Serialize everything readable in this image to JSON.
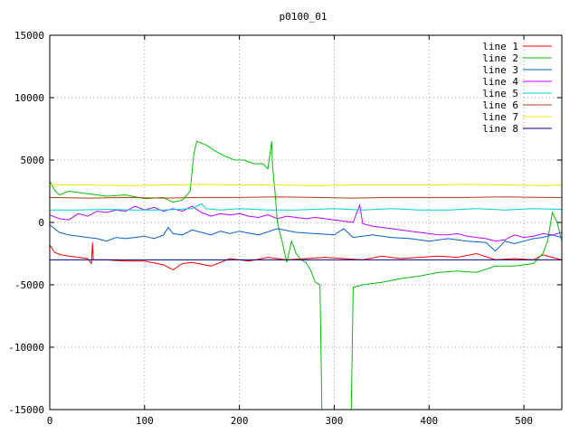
{
  "chart_data": {
    "type": "line",
    "title": "p0100_01",
    "xlabel": "",
    "ylabel": "",
    "xlim": [
      0,
      540
    ],
    "ylim": [
      -15000,
      15000
    ],
    "x_ticks": [
      0,
      100,
      200,
      300,
      400,
      500
    ],
    "y_ticks": [
      -15000,
      -10000,
      -5000,
      0,
      5000,
      10000,
      15000
    ],
    "grid": true,
    "legend_position": "top-right",
    "series": [
      {
        "name": "line 1",
        "color": "#ff0000",
        "points": [
          [
            0,
            -1800
          ],
          [
            5,
            -2400
          ],
          [
            12,
            -2600
          ],
          [
            20,
            -2700
          ],
          [
            30,
            -2800
          ],
          [
            40,
            -2900
          ],
          [
            44,
            -3300
          ],
          [
            45,
            -1600
          ],
          [
            46,
            -3000
          ],
          [
            60,
            -3000
          ],
          [
            80,
            -3100
          ],
          [
            100,
            -3100
          ],
          [
            120,
            -3400
          ],
          [
            130,
            -3800
          ],
          [
            140,
            -3300
          ],
          [
            150,
            -3200
          ],
          [
            170,
            -3500
          ],
          [
            190,
            -2900
          ],
          [
            210,
            -3100
          ],
          [
            230,
            -2800
          ],
          [
            250,
            -3000
          ],
          [
            270,
            -2900
          ],
          [
            290,
            -2800
          ],
          [
            310,
            -2900
          ],
          [
            330,
            -3000
          ],
          [
            350,
            -2700
          ],
          [
            370,
            -2900
          ],
          [
            390,
            -2800
          ],
          [
            410,
            -2700
          ],
          [
            430,
            -2800
          ],
          [
            450,
            -2500
          ],
          [
            470,
            -3000
          ],
          [
            490,
            -2900
          ],
          [
            510,
            -3000
          ],
          [
            520,
            -2600
          ],
          [
            530,
            -2800
          ],
          [
            540,
            -3000
          ]
        ]
      },
      {
        "name": "line 2",
        "color": "#00c000",
        "points": [
          [
            0,
            3300
          ],
          [
            5,
            2600
          ],
          [
            10,
            2200
          ],
          [
            20,
            2500
          ],
          [
            40,
            2300
          ],
          [
            60,
            2100
          ],
          [
            80,
            2200
          ],
          [
            100,
            1900
          ],
          [
            120,
            2000
          ],
          [
            130,
            1600
          ],
          [
            140,
            1800
          ],
          [
            148,
            2500
          ],
          [
            152,
            5500
          ],
          [
            155,
            6500
          ],
          [
            165,
            6200
          ],
          [
            175,
            5700
          ],
          [
            185,
            5300
          ],
          [
            195,
            5000
          ],
          [
            205,
            5000
          ],
          [
            215,
            4700
          ],
          [
            225,
            4700
          ],
          [
            230,
            4300
          ],
          [
            234,
            6500
          ],
          [
            235,
            4500
          ],
          [
            238,
            2000
          ],
          [
            240,
            0
          ],
          [
            245,
            -1500
          ],
          [
            250,
            -3200
          ],
          [
            255,
            -1500
          ],
          [
            260,
            -2500
          ],
          [
            265,
            -3000
          ],
          [
            270,
            -3200
          ],
          [
            275,
            -3800
          ],
          [
            280,
            -4800
          ],
          [
            285,
            -5000
          ],
          [
            287,
            -15000
          ],
          [
            318,
            -15000
          ],
          [
            320,
            -5200
          ],
          [
            330,
            -5000
          ],
          [
            350,
            -4800
          ],
          [
            370,
            -4500
          ],
          [
            390,
            -4300
          ],
          [
            410,
            -4000
          ],
          [
            430,
            -3900
          ],
          [
            450,
            -4000
          ],
          [
            470,
            -3500
          ],
          [
            490,
            -3500
          ],
          [
            510,
            -3300
          ],
          [
            520,
            -2500
          ],
          [
            525,
            -1500
          ],
          [
            530,
            800
          ],
          [
            535,
            0
          ],
          [
            540,
            -1500
          ]
        ]
      },
      {
        "name": "line 3",
        "color": "#0060d0",
        "points": [
          [
            0,
            -200
          ],
          [
            10,
            -800
          ],
          [
            20,
            -1000
          ],
          [
            30,
            -1100
          ],
          [
            40,
            -1200
          ],
          [
            50,
            -1300
          ],
          [
            60,
            -1500
          ],
          [
            70,
            -1200
          ],
          [
            80,
            -1300
          ],
          [
            90,
            -1200
          ],
          [
            100,
            -1100
          ],
          [
            110,
            -1300
          ],
          [
            120,
            -1000
          ],
          [
            125,
            -400
          ],
          [
            130,
            -900
          ],
          [
            140,
            -1000
          ],
          [
            150,
            -600
          ],
          [
            160,
            -800
          ],
          [
            170,
            -1000
          ],
          [
            180,
            -700
          ],
          [
            190,
            -900
          ],
          [
            200,
            -700
          ],
          [
            220,
            -1000
          ],
          [
            240,
            -500
          ],
          [
            260,
            -800
          ],
          [
            280,
            -900
          ],
          [
            300,
            -1000
          ],
          [
            310,
            -500
          ],
          [
            320,
            -1200
          ],
          [
            340,
            -1000
          ],
          [
            360,
            -1200
          ],
          [
            380,
            -1300
          ],
          [
            400,
            -1500
          ],
          [
            420,
            -1300
          ],
          [
            440,
            -1500
          ],
          [
            460,
            -1600
          ],
          [
            470,
            -2300
          ],
          [
            480,
            -1500
          ],
          [
            490,
            -1700
          ],
          [
            500,
            -1500
          ],
          [
            510,
            -1300
          ],
          [
            520,
            -1200
          ],
          [
            530,
            -1000
          ],
          [
            540,
            -1200
          ]
        ]
      },
      {
        "name": "line 4",
        "color": "#c000ff",
        "points": [
          [
            0,
            600
          ],
          [
            10,
            300
          ],
          [
            20,
            200
          ],
          [
            30,
            700
          ],
          [
            40,
            500
          ],
          [
            50,
            900
          ],
          [
            60,
            800
          ],
          [
            70,
            1000
          ],
          [
            80,
            900
          ],
          [
            90,
            1300
          ],
          [
            100,
            1000
          ],
          [
            110,
            1200
          ],
          [
            120,
            900
          ],
          [
            130,
            1100
          ],
          [
            140,
            900
          ],
          [
            150,
            1300
          ],
          [
            160,
            800
          ],
          [
            170,
            500
          ],
          [
            180,
            700
          ],
          [
            190,
            600
          ],
          [
            200,
            700
          ],
          [
            210,
            500
          ],
          [
            220,
            400
          ],
          [
            230,
            600
          ],
          [
            240,
            300
          ],
          [
            250,
            500
          ],
          [
            260,
            400
          ],
          [
            270,
            300
          ],
          [
            280,
            400
          ],
          [
            290,
            300
          ],
          [
            300,
            200
          ],
          [
            310,
            100
          ],
          [
            320,
            0
          ],
          [
            327,
            1400
          ],
          [
            330,
            -100
          ],
          [
            340,
            -300
          ],
          [
            350,
            -400
          ],
          [
            360,
            -500
          ],
          [
            370,
            -600
          ],
          [
            380,
            -700
          ],
          [
            390,
            -800
          ],
          [
            400,
            -900
          ],
          [
            410,
            -1000
          ],
          [
            420,
            -1000
          ],
          [
            430,
            -900
          ],
          [
            440,
            -1100
          ],
          [
            450,
            -1200
          ],
          [
            460,
            -1300
          ],
          [
            470,
            -1500
          ],
          [
            480,
            -1400
          ],
          [
            490,
            -1000
          ],
          [
            500,
            -1200
          ],
          [
            510,
            -1100
          ],
          [
            520,
            -900
          ],
          [
            530,
            -1000
          ],
          [
            540,
            -800
          ]
        ]
      },
      {
        "name": "line 5",
        "color": "#00d0d0",
        "points": [
          [
            0,
            1000
          ],
          [
            30,
            1000
          ],
          [
            60,
            1050
          ],
          [
            90,
            1000
          ],
          [
            120,
            1000
          ],
          [
            150,
            1100
          ],
          [
            160,
            1500
          ],
          [
            165,
            1100
          ],
          [
            180,
            1000
          ],
          [
            200,
            1100
          ],
          [
            230,
            1000
          ],
          [
            260,
            1000
          ],
          [
            300,
            1100
          ],
          [
            330,
            1000
          ],
          [
            360,
            1100
          ],
          [
            390,
            1000
          ],
          [
            420,
            1000
          ],
          [
            450,
            1100
          ],
          [
            480,
            1000
          ],
          [
            510,
            1100
          ],
          [
            540,
            1050
          ]
        ]
      },
      {
        "name": "line 6",
        "color": "#b04010",
        "points": [
          [
            0,
            2000
          ],
          [
            40,
            1950
          ],
          [
            80,
            2000
          ],
          [
            120,
            1950
          ],
          [
            160,
            2000
          ],
          [
            200,
            2000
          ],
          [
            240,
            2050
          ],
          [
            280,
            2000
          ],
          [
            320,
            1950
          ],
          [
            360,
            2000
          ],
          [
            400,
            2000
          ],
          [
            440,
            2000
          ],
          [
            480,
            2050
          ],
          [
            520,
            2000
          ],
          [
            540,
            2000
          ]
        ]
      },
      {
        "name": "line 7",
        "color": "#e8e800",
        "points": [
          [
            0,
            3000
          ],
          [
            40,
            3000
          ],
          [
            80,
            2950
          ],
          [
            120,
            3000
          ],
          [
            160,
            3050
          ],
          [
            200,
            3000
          ],
          [
            240,
            3000
          ],
          [
            280,
            2950
          ],
          [
            320,
            3000
          ],
          [
            360,
            3000
          ],
          [
            400,
            3000
          ],
          [
            440,
            3050
          ],
          [
            480,
            3000
          ],
          [
            520,
            2950
          ],
          [
            540,
            3000
          ]
        ]
      },
      {
        "name": "line 8",
        "color": "#000080",
        "points": [
          [
            0,
            -3000
          ],
          [
            60,
            -3000
          ],
          [
            120,
            -3000
          ],
          [
            180,
            -3000
          ],
          [
            240,
            -3000
          ],
          [
            300,
            -3000
          ],
          [
            360,
            -3000
          ],
          [
            420,
            -3000
          ],
          [
            480,
            -3000
          ],
          [
            540,
            -3000
          ]
        ]
      }
    ]
  }
}
